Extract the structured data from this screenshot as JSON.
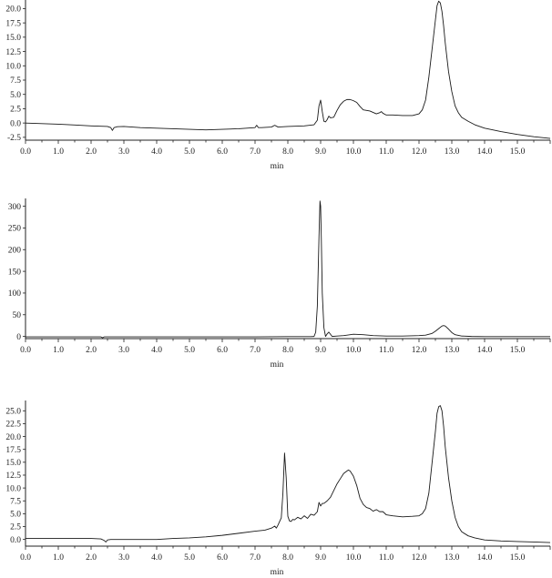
{
  "chart_data": [
    {
      "type": "line",
      "xlabel": "min",
      "ylabel": "",
      "xlim": [
        0,
        16
      ],
      "ylim": [
        -3,
        21.5
      ],
      "xticks": [
        "0.0",
        "1.0",
        "2.0",
        "3.0",
        "4.0",
        "5.0",
        "6.0",
        "7.0",
        "8.0",
        "9.0",
        "10.0",
        "11.0",
        "12.0",
        "13.0",
        "14.0",
        "15.0"
      ],
      "yticks": [
        "-2.5",
        "0.0",
        "2.5",
        "5.0",
        "7.5",
        "10.0",
        "12.5",
        "15.0",
        "17.5",
        "20.0"
      ],
      "series": [
        {
          "x": [
            0,
            0.5,
            1,
            1.5,
            2,
            2.5,
            2.6,
            2.65,
            2.7,
            2.8,
            3,
            3.5,
            4,
            4.5,
            5,
            5.5,
            6,
            6.5,
            7,
            7.05,
            7.1,
            7.2,
            7.5,
            7.6,
            7.7,
            8,
            8.5,
            8.8,
            8.9,
            8.95,
            9,
            9.05,
            9.1,
            9.15,
            9.2,
            9.25,
            9.3,
            9.4,
            9.5,
            9.6,
            9.7,
            9.8,
            9.9,
            10,
            10.1,
            10.2,
            10.3,
            10.5,
            10.7,
            10.8,
            10.85,
            10.9,
            11,
            11.2,
            11.5,
            11.8,
            12,
            12.1,
            12.2,
            12.3,
            12.4,
            12.5,
            12.55,
            12.6,
            12.65,
            12.7,
            12.75,
            12.8,
            12.9,
            13,
            13.1,
            13.2,
            13.3,
            13.5,
            13.7,
            14,
            14.5,
            15,
            15.5,
            16
          ],
          "values": [
            0,
            -0.1,
            -0.2,
            -0.35,
            -0.5,
            -0.6,
            -0.8,
            -1.3,
            -0.8,
            -0.65,
            -0.6,
            -0.8,
            -0.9,
            -1,
            -1.1,
            -1.2,
            -1.1,
            -1,
            -0.8,
            -0.4,
            -0.8,
            -0.8,
            -0.7,
            -0.4,
            -0.7,
            -0.6,
            -0.5,
            -0.3,
            0.5,
            3,
            4,
            2,
            0.3,
            0.2,
            0.6,
            1.2,
            0.9,
            1,
            2.2,
            3.2,
            3.8,
            4.1,
            4.1,
            3.9,
            3.6,
            2.9,
            2.3,
            2.1,
            1.6,
            1.8,
            2,
            1.7,
            1.4,
            1.4,
            1.3,
            1.3,
            1.6,
            2.3,
            4,
            8,
            13,
            18,
            20.5,
            21.3,
            21,
            19.5,
            17,
            14,
            9,
            5.5,
            3,
            1.8,
            1,
            0.3,
            -0.3,
            -0.9,
            -1.5,
            -2,
            -2.4,
            -2.7
          ]
        }
      ]
    },
    {
      "type": "line",
      "xlabel": "min",
      "ylabel": "",
      "xlim": [
        0,
        16
      ],
      "ylim": [
        -5,
        318
      ],
      "xticks": [
        "0.0",
        "1.0",
        "2.0",
        "3.0",
        "4.0",
        "5.0",
        "6.0",
        "7.0",
        "8.0",
        "9.0",
        "10.0",
        "11.0",
        "12.0",
        "13.0",
        "14.0",
        "15.0"
      ],
      "yticks": [
        "0",
        "50",
        "100",
        "150",
        "200",
        "250",
        "300"
      ],
      "series": [
        {
          "x": [
            0,
            1,
            2,
            2.3,
            2.35,
            2.4,
            2.5,
            3,
            4,
            5,
            6,
            7,
            8,
            8.7,
            8.8,
            8.85,
            8.9,
            8.95,
            8.98,
            9,
            9.02,
            9.05,
            9.1,
            9.15,
            9.2,
            9.25,
            9.3,
            9.35,
            9.5,
            9.7,
            10,
            10.3,
            10.6,
            11,
            11.5,
            12,
            12.2,
            12.4,
            12.5,
            12.6,
            12.7,
            12.75,
            12.8,
            12.9,
            13,
            13.1,
            13.3,
            13.6,
            14,
            15,
            16
          ],
          "values": [
            -1,
            -1,
            -1,
            -1,
            -3,
            -1,
            -1,
            -1,
            -1,
            -1,
            -1,
            -1,
            -0.5,
            -0.5,
            0,
            10,
            70,
            230,
            312,
            300,
            230,
            100,
            20,
            0,
            6,
            10,
            5,
            0,
            1,
            2,
            5,
            4,
            2,
            1,
            1,
            2,
            3,
            7,
            12,
            18,
            24,
            25,
            24,
            17,
            9,
            4,
            1,
            0,
            -0.5,
            -0.5,
            -0.5
          ]
        }
      ]
    },
    {
      "type": "line",
      "xlabel": "min",
      "ylabel": "",
      "xlim": [
        0,
        16
      ],
      "ylim": [
        -1.3,
        27
      ],
      "xticks": [
        "0.0",
        "1.0",
        "2.0",
        "3.0",
        "4.0",
        "5.0",
        "6.0",
        "7.0",
        "8.0",
        "9.0",
        "10.0",
        "11.0",
        "12.0",
        "13.0",
        "14.0",
        "15.0"
      ],
      "yticks": [
        "0.0",
        "2.5",
        "5.0",
        "7.5",
        "10.0",
        "12.5",
        "15.0",
        "17.5",
        "20.0",
        "22.5",
        "25.0"
      ],
      "series": [
        {
          "x": [
            0,
            1,
            1.5,
            2,
            2.3,
            2.4,
            2.45,
            2.5,
            2.6,
            3,
            3.5,
            4,
            4.5,
            5,
            5.5,
            6,
            6.5,
            7,
            7.3,
            7.5,
            7.6,
            7.65,
            7.7,
            7.8,
            7.85,
            7.9,
            7.95,
            8,
            8.05,
            8.1,
            8.15,
            8.2,
            8.3,
            8.4,
            8.5,
            8.6,
            8.7,
            8.8,
            8.9,
            8.95,
            9,
            9.05,
            9.1,
            9.2,
            9.3,
            9.4,
            9.5,
            9.6,
            9.7,
            9.8,
            9.85,
            9.9,
            10,
            10.1,
            10.2,
            10.3,
            10.4,
            10.5,
            10.6,
            10.7,
            10.8,
            10.9,
            11,
            11.2,
            11.5,
            11.8,
            12,
            12.1,
            12.2,
            12.3,
            12.4,
            12.5,
            12.55,
            12.6,
            12.65,
            12.7,
            12.75,
            12.8,
            12.9,
            13,
            13.1,
            13.2,
            13.3,
            13.5,
            13.7,
            14,
            14.5,
            15,
            15.5,
            16
          ],
          "values": [
            0.2,
            0.2,
            0.2,
            0.2,
            0.1,
            -0.2,
            -0.5,
            -0.1,
            0,
            0,
            0,
            0,
            0.2,
            0.3,
            0.5,
            0.8,
            1.2,
            1.6,
            1.8,
            2.2,
            2.6,
            2.2,
            2.8,
            4.2,
            9,
            16.8,
            12,
            4.5,
            3.6,
            3.5,
            3.9,
            3.8,
            4.3,
            4,
            4.6,
            4.1,
            4.9,
            4.7,
            5.4,
            7.2,
            6.5,
            7,
            7,
            7.5,
            8.2,
            9.5,
            10.8,
            11.8,
            12.8,
            13.3,
            13.5,
            13.3,
            12.3,
            10.5,
            8,
            6.8,
            6.2,
            6,
            5.5,
            5.8,
            5.4,
            5.4,
            4.8,
            4.6,
            4.4,
            4.5,
            4.6,
            5,
            6,
            9,
            15,
            21,
            24.5,
            25.8,
            26,
            25,
            22,
            18,
            12,
            7.5,
            4.3,
            2.5,
            1.5,
            0.7,
            0.3,
            -0.1,
            -0.3,
            -0.4,
            -0.5,
            -0.6
          ]
        }
      ]
    }
  ]
}
